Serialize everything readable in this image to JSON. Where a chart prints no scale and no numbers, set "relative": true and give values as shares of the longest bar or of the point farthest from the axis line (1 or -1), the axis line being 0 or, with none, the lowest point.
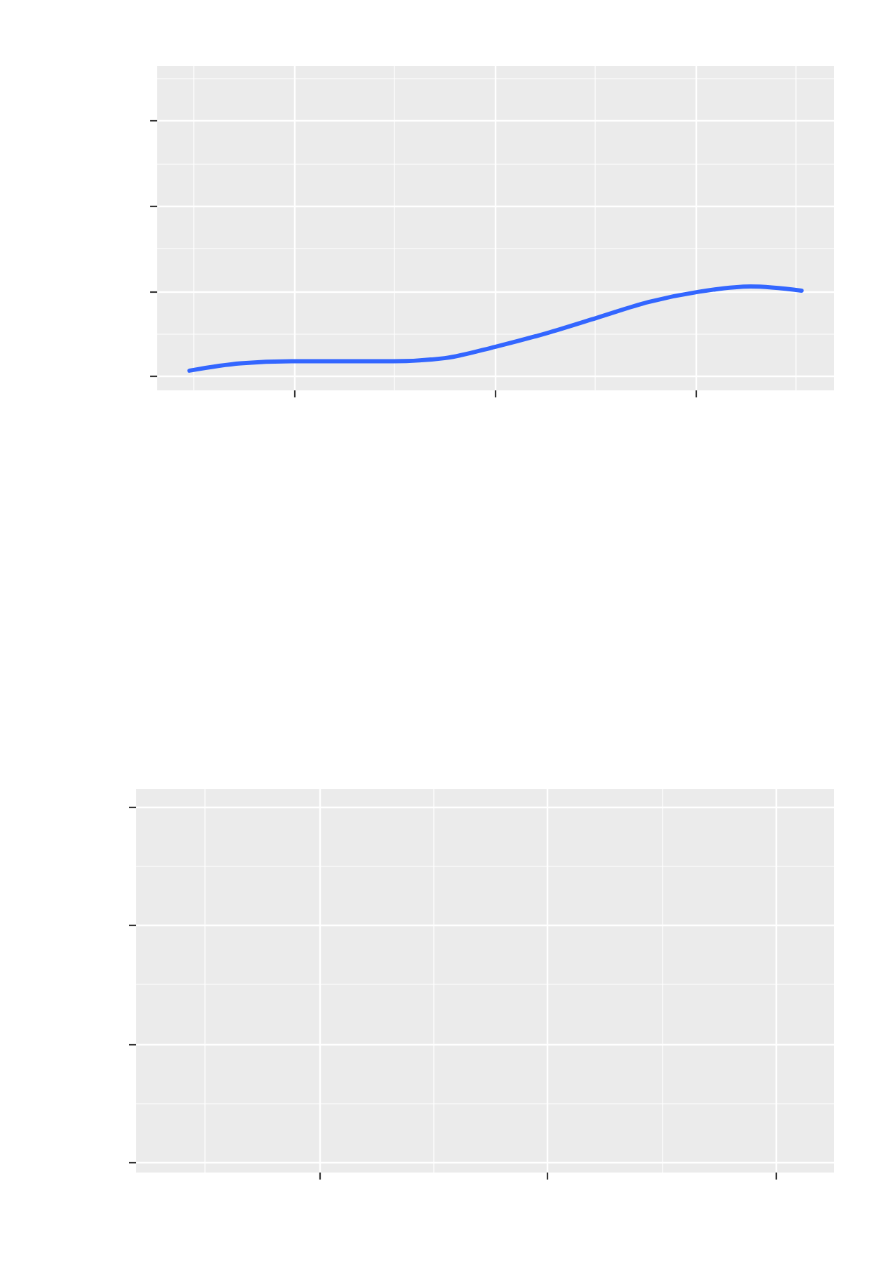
{
  "chart_data": {
    "type": "line",
    "relative": true,
    "grid": true,
    "categories": [
      null,
      null,
      null,
      null,
      null,
      null,
      null,
      null,
      null,
      null,
      null,
      null,
      null
    ],
    "series": [
      {
        "color": "#3366ff",
        "values": [
          0.19,
          0.26,
          0.28,
          0.28,
          0.28,
          0.31,
          0.42,
          0.55,
          0.7,
          0.85,
          0.95,
          1,
          0.96
        ]
      }
    ]
  }
}
